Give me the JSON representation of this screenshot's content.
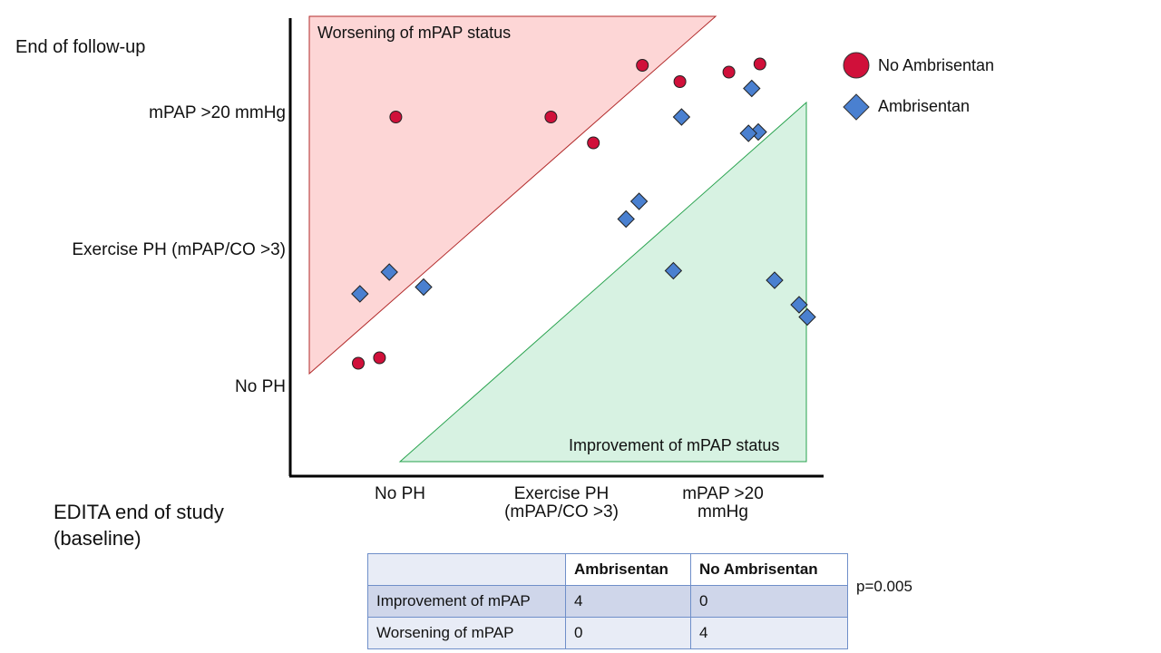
{
  "chart_data": {
    "type": "scatter",
    "y_axis_title": "End of follow-up",
    "x_axis_title": "EDITA end of study\n(baseline)",
    "categories": [
      "No PH",
      "Exercise PH (mPAP/CO >3)",
      "mPAP >20 mmHg"
    ],
    "x_tick_labels": [
      "No PH",
      "Exercise PH\n(mPAP/CO >3)",
      "mPAP >20\nmmHg"
    ],
    "y_tick_labels": [
      "No PH",
      "Exercise PH (mPAP/CO >3)",
      "mPAP >20 mmHg"
    ],
    "xlim": [
      0.5,
      3.5
    ],
    "ylim": [
      0.5,
      3.5
    ],
    "regions": [
      {
        "name": "Worsening of mPAP status",
        "fill": "#fdd6d6",
        "stroke": "#b22a2a"
      },
      {
        "name": "Improvement of mPAP status",
        "fill": "#d7f2e2",
        "stroke": "#27a24d"
      }
    ],
    "series": [
      {
        "name": "No Ambrisentan",
        "marker": "circle",
        "color": "#d0103a",
        "points": [
          {
            "x": 0.98,
            "y": 2.98
          },
          {
            "x": 1.93,
            "y": 2.98
          },
          {
            "x": 2.49,
            "y": 3.36
          },
          {
            "x": 2.19,
            "y": 2.79
          },
          {
            "x": 2.72,
            "y": 3.24
          },
          {
            "x": 3.02,
            "y": 3.31
          },
          {
            "x": 3.21,
            "y": 3.37
          },
          {
            "x": 0.75,
            "y": 1.17
          },
          {
            "x": 0.88,
            "y": 1.21
          }
        ]
      },
      {
        "name": "Ambrisentan",
        "marker": "diamond",
        "color": "#4a80d0",
        "points": [
          {
            "x": 2.73,
            "y": 2.98
          },
          {
            "x": 3.16,
            "y": 3.19
          },
          {
            "x": 3.2,
            "y": 2.87
          },
          {
            "x": 3.14,
            "y": 2.86
          },
          {
            "x": 2.47,
            "y": 2.36
          },
          {
            "x": 2.39,
            "y": 2.23
          },
          {
            "x": 0.76,
            "y": 1.68
          },
          {
            "x": 0.94,
            "y": 1.84
          },
          {
            "x": 1.15,
            "y": 1.73
          },
          {
            "x": 2.68,
            "y": 1.85
          },
          {
            "x": 3.3,
            "y": 1.78
          },
          {
            "x": 3.45,
            "y": 1.6
          },
          {
            "x": 3.5,
            "y": 1.51
          }
        ]
      }
    ]
  },
  "table": {
    "headers": [
      "",
      "Ambrisentan",
      "No Ambrisentan"
    ],
    "rows": [
      [
        "Improvement of mPAP",
        "4",
        "0"
      ],
      [
        "Worsening of mPAP",
        "0",
        "4"
      ]
    ],
    "pvalue": "p=0.005"
  }
}
